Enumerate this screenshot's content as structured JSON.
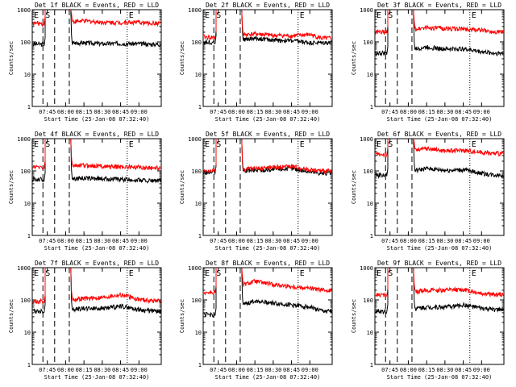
{
  "figure": {
    "ylabel": "Counts/sec",
    "xlabel": "Start Time (25-Jan-08 07:32:40)",
    "y_ticks": [
      "1",
      "10",
      "100",
      "1000"
    ],
    "x_ticks": [
      "07:45",
      "08:00",
      "08:15",
      "08:30",
      "08:45",
      "09:00"
    ],
    "marker_labels": [
      "E",
      "S",
      "E"
    ],
    "colors": {
      "events": "#000000",
      "lld": "#ff0000",
      "axis": "#000000",
      "background": "#ffffff"
    }
  },
  "chart_data": [
    {
      "type": "line",
      "title": "Det 1f BLACK = Events, RED = LLD",
      "xlabel": "Start Time (25-Jan-08 07:32:40)",
      "ylabel": "Counts/sec",
      "scale_y": "log",
      "ylim": [
        1,
        1000
      ],
      "x": [
        "07:45",
        "08:00",
        "08:15",
        "08:30",
        "08:45",
        "09:00",
        "09:10"
      ],
      "series": [
        {
          "name": "BLACK = Events",
          "values": [
            85,
            null,
            95,
            88,
            90,
            88,
            85
          ]
        },
        {
          "name": "RED = LLD",
          "values": [
            380,
            null,
            450,
            410,
            400,
            405,
            380
          ]
        }
      ]
    },
    {
      "type": "line",
      "title": "Det 2f BLACK = Events, RED = LLD",
      "xlabel": "Start Time (25-Jan-08 07:32:40)",
      "ylabel": "Counts/sec",
      "scale_y": "log",
      "ylim": [
        1,
        1000
      ],
      "x": [
        "07:45",
        "08:00",
        "08:15",
        "08:30",
        "08:45",
        "09:00",
        "09:10"
      ],
      "series": [
        {
          "name": "BLACK = Events",
          "values": [
            100,
            null,
            130,
            115,
            110,
            95,
            95
          ]
        },
        {
          "name": "RED = LLD",
          "values": [
            140,
            null,
            180,
            160,
            155,
            170,
            130
          ]
        }
      ]
    },
    {
      "type": "line",
      "title": "Det 3f BLACK = Events, RED = LLD",
      "xlabel": "Start Time (25-Jan-08 07:32:40)",
      "ylabel": "Counts/sec",
      "scale_y": "log",
      "ylim": [
        1,
        1000
      ],
      "x": [
        "07:45",
        "08:00",
        "08:15",
        "08:30",
        "08:45",
        "09:00",
        "09:10"
      ],
      "series": [
        {
          "name": "BLACK = Events",
          "values": [
            45,
            null,
            70,
            60,
            62,
            50,
            45
          ]
        },
        {
          "name": "RED = LLD",
          "values": [
            200,
            null,
            280,
            260,
            255,
            230,
            210
          ]
        }
      ]
    },
    {
      "type": "line",
      "title": "Det 4f BLACK = Events, RED = LLD",
      "xlabel": "Start Time (25-Jan-08 07:32:40)",
      "ylabel": "Counts/sec",
      "scale_y": "log",
      "ylim": [
        1,
        1000
      ],
      "x": [
        "07:45",
        "08:00",
        "08:15",
        "08:30",
        "08:45",
        "09:00",
        "09:10"
      ],
      "series": [
        {
          "name": "BLACK = Events",
          "values": [
            55,
            null,
            60,
            58,
            55,
            52,
            50
          ]
        },
        {
          "name": "RED = LLD",
          "values": [
            130,
            null,
            150,
            140,
            135,
            130,
            125
          ]
        }
      ]
    },
    {
      "type": "line",
      "title": "Det 5f BLACK = Events, RED = LLD",
      "xlabel": "Start Time (25-Jan-08 07:32:40)",
      "ylabel": "Counts/sec",
      "scale_y": "log",
      "ylim": [
        1,
        1000
      ],
      "x": [
        "07:45",
        "08:00",
        "08:15",
        "08:30",
        "08:45",
        "09:00",
        "09:10"
      ],
      "series": [
        {
          "name": "BLACK = Events",
          "values": [
            90,
            null,
            105,
            110,
            120,
            95,
            85
          ]
        },
        {
          "name": "RED = LLD",
          "values": [
            100,
            null,
            120,
            130,
            140,
            110,
            100
          ]
        }
      ]
    },
    {
      "type": "line",
      "title": "Det 6f BLACK = Events, RED = LLD",
      "xlabel": "Start Time (25-Jan-08 07:32:40)",
      "ylabel": "Counts/sec",
      "scale_y": "log",
      "ylim": [
        1,
        1000
      ],
      "x": [
        "07:45",
        "08:00",
        "08:15",
        "08:30",
        "08:45",
        "09:00",
        "09:10"
      ],
      "series": [
        {
          "name": "BLACK = Events",
          "values": [
            75,
            null,
            120,
            105,
            110,
            85,
            75
          ]
        },
        {
          "name": "RED = LLD",
          "values": [
            330,
            null,
            500,
            420,
            440,
            380,
            350
          ]
        }
      ]
    },
    {
      "type": "line",
      "title": "Det 7f BLACK = Events, RED = LLD",
      "xlabel": "Start Time (25-Jan-08 07:32:40)",
      "ylabel": "Counts/sec",
      "scale_y": "log",
      "ylim": [
        1,
        1000
      ],
      "x": [
        "07:45",
        "08:00",
        "08:15",
        "08:30",
        "08:45",
        "09:00",
        "09:10"
      ],
      "series": [
        {
          "name": "BLACK = Events",
          "values": [
            45,
            null,
            55,
            55,
            65,
            50,
            45
          ]
        },
        {
          "name": "RED = LLD",
          "values": [
            90,
            null,
            110,
            120,
            145,
            105,
            95
          ]
        }
      ]
    },
    {
      "type": "line",
      "title": "Det 8f BLACK = Events, RED = LLD",
      "xlabel": "Start Time (25-Jan-08 07:32:40)",
      "ylabel": "Counts/sec",
      "scale_y": "log",
      "ylim": [
        1,
        1000
      ],
      "x": [
        "07:45",
        "08:00",
        "08:15",
        "08:30",
        "08:45",
        "09:00",
        "09:10"
      ],
      "series": [
        {
          "name": "BLACK = Events",
          "values": [
            35,
            null,
            95,
            80,
            70,
            60,
            45
          ]
        },
        {
          "name": "RED = LLD",
          "values": [
            170,
            null,
            380,
            300,
            260,
            230,
            200
          ]
        }
      ]
    },
    {
      "type": "line",
      "title": "Det 9f BLACK = Events, RED = LLD",
      "xlabel": "Start Time (25-Jan-08 07:32:40)",
      "ylabel": "Counts/sec",
      "scale_y": "log",
      "ylim": [
        1,
        1000
      ],
      "x": [
        "07:45",
        "08:00",
        "08:15",
        "08:30",
        "08:45",
        "09:00",
        "09:10"
      ],
      "series": [
        {
          "name": "BLACK = Events",
          "values": [
            45,
            null,
            60,
            60,
            70,
            55,
            50
          ]
        },
        {
          "name": "RED = LLD",
          "values": [
            140,
            null,
            200,
            200,
            210,
            160,
            150
          ]
        }
      ]
    }
  ]
}
